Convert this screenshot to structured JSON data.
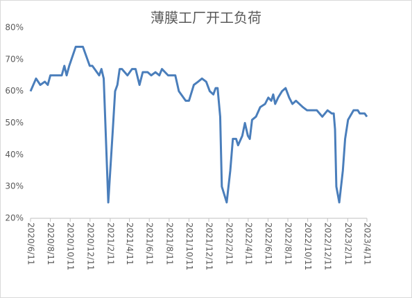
{
  "chart_data": {
    "type": "line",
    "title": "薄膜工厂开工负荷",
    "x": [
      "2020/6/11",
      "2020/6/28",
      "2020/7/11",
      "2020/7/25",
      "2020/8/3",
      "2020/8/11",
      "2020/9/15",
      "2020/9/23",
      "2020/9/30",
      "2020/10/8",
      "2020/10/28",
      "2020/11/19",
      "2020/12/10",
      "2020/12/18",
      "2021/1/8",
      "2021/1/15",
      "2021/1/22",
      "2021/2/5",
      "2021/2/19",
      "2021/2/26",
      "2021/3/5",
      "2021/3/12",
      "2021/3/19",
      "2021/4/5",
      "2021/4/19",
      "2021/4/30",
      "2021/5/12",
      "2021/5/22",
      "2021/6/6",
      "2021/6/17",
      "2021/6/30",
      "2021/7/12",
      "2021/7/20",
      "2021/8/8",
      "2021/8/30",
      "2021/9/10",
      "2021/10/1",
      "2021/10/11",
      "2021/10/26",
      "2021/11/8",
      "2021/11/20",
      "2021/12/3",
      "2021/12/14",
      "2021/12/25",
      "2022/1/1",
      "2022/1/7",
      "2022/1/15",
      "2022/1/20",
      "2022/2/4",
      "2022/2/15",
      "2022/2/23",
      "2022/3/5",
      "2022/3/11",
      "2022/3/24",
      "2022/4/1",
      "2022/4/10",
      "2022/4/16",
      "2022/4/23",
      "2022/5/5",
      "2022/5/18",
      "2022/6/2",
      "2022/6/12",
      "2022/6/21",
      "2022/6/27",
      "2022/7/3",
      "2022/7/12",
      "2022/7/24",
      "2022/8/4",
      "2022/8/15",
      "2022/8/25",
      "2022/9/5",
      "2022/9/26",
      "2022/10/9",
      "2022/11/8",
      "2022/11/25",
      "2022/12/11",
      "2022/12/24",
      "2022/12/30",
      "2023/1/3",
      "2023/1/7",
      "2023/1/16",
      "2023/1/27",
      "2023/2/3",
      "2023/2/12",
      "2023/3/1",
      "2023/3/14",
      "2023/3/20",
      "2023/3/28",
      "2023/4/4",
      "2023/4/11"
    ],
    "series": [
      {
        "color": "#4a7ebb",
        "values": [
          60,
          64,
          62,
          63,
          62,
          65,
          65,
          68,
          65,
          68,
          74,
          74,
          68,
          68,
          65,
          67,
          64,
          25,
          48,
          60,
          62,
          67,
          67,
          65,
          67,
          67,
          62,
          66,
          66,
          65,
          66,
          65,
          67,
          65,
          65,
          60,
          57,
          57,
          62,
          63,
          64,
          63,
          60,
          59,
          61,
          61,
          52,
          30,
          25,
          35,
          45,
          45,
          43,
          46,
          50,
          46,
          45,
          51,
          52,
          55,
          56,
          58,
          57,
          59,
          56,
          58,
          60,
          61,
          58,
          56,
          57,
          55,
          54,
          54,
          52,
          54,
          53,
          53,
          48,
          30,
          25,
          35,
          45,
          51,
          54,
          54,
          53,
          53,
          53,
          52
        ]
      }
    ],
    "xlim": [
      "2020/6/11",
      "2023/4/11"
    ],
    "xticks": [
      "2020/6/11",
      "2020/8/11",
      "2020/10/11",
      "2020/12/11",
      "2021/2/11",
      "2021/4/11",
      "2021/6/11",
      "2021/8/11",
      "2021/10/11",
      "2021/12/11",
      "2022/2/11",
      "2022/4/11",
      "2022/6/11",
      "2022/8/11",
      "2022/10/11",
      "2022/12/11",
      "2023/2/11",
      "2023/4/11"
    ],
    "ylim": [
      20,
      80
    ],
    "yticks": [
      {
        "value": 20,
        "label": "20%"
      },
      {
        "value": 30,
        "label": "30%"
      },
      {
        "value": 40,
        "label": "40%"
      },
      {
        "value": 50,
        "label": "50%"
      },
      {
        "value": 60,
        "label": "60%"
      },
      {
        "value": 70,
        "label": "70%"
      },
      {
        "value": 80,
        "label": "80%"
      }
    ],
    "grid": false
  }
}
